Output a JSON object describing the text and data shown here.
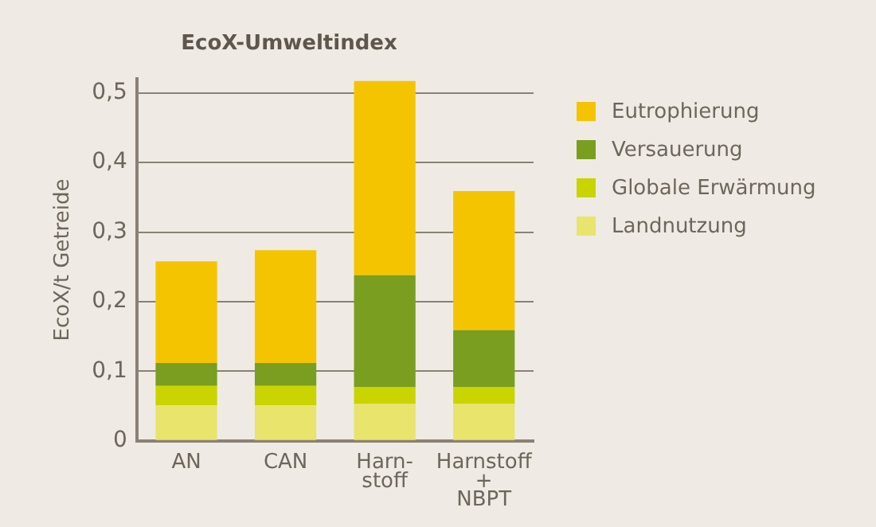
{
  "chart_data": {
    "type": "bar",
    "title": "EcoX-Umweltindex",
    "ylabel": "EcoX/t Getreide",
    "categories": [
      "AN",
      "CAN",
      "Harn-\nstoff",
      "Harnstoff\n+\nNBPT"
    ],
    "stacked": true,
    "series": [
      {
        "name": "Landnutzung",
        "color": "#e8e46c",
        "values": [
          0.051,
          0.051,
          0.053,
          0.053
        ]
      },
      {
        "name": "Globale Erwärmung",
        "color": "#c9d400",
        "values": [
          0.028,
          0.028,
          0.024,
          0.024
        ]
      },
      {
        "name": "Versauerung",
        "color": "#7a9e1f",
        "values": [
          0.033,
          0.033,
          0.161,
          0.082
        ]
      },
      {
        "name": "Eutrophierung",
        "color": "#f5c400",
        "values": [
          0.146,
          0.162,
          0.279,
          0.2
        ]
      }
    ],
    "ylim": [
      0,
      0.52
    ],
    "yticks": [
      0,
      {
        "value": 0.1,
        "label": "0,1"
      },
      {
        "value": 0.2,
        "label": "0,2"
      },
      {
        "value": 0.3,
        "label": "0,3"
      },
      {
        "value": 0.4,
        "label": "0,4"
      },
      {
        "value": 0.5,
        "label": "0,5"
      }
    ],
    "grid": "y",
    "legend": "right"
  }
}
